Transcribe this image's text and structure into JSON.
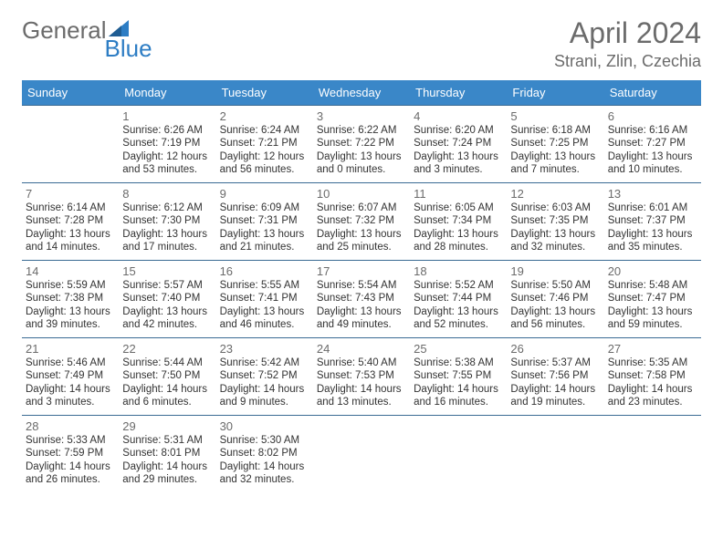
{
  "brand": {
    "part1": "General",
    "part2": "Blue"
  },
  "title": "April 2024",
  "location": "Strani, Zlin, Czechia",
  "colors": {
    "header_bg": "#3a87c8",
    "header_fg": "#ffffff",
    "row_border": "#3a6b94",
    "text_gray": "#6b6b6b",
    "text_body": "#333333",
    "brand_blue": "#2d7dc4",
    "page_bg": "#ffffff"
  },
  "weekdays": [
    "Sunday",
    "Monday",
    "Tuesday",
    "Wednesday",
    "Thursday",
    "Friday",
    "Saturday"
  ],
  "layout": {
    "first_weekday_index": 1,
    "days_in_month": 30,
    "rows": 5,
    "cols": 7
  },
  "days": {
    "1": {
      "sunrise": "6:26 AM",
      "sunset": "7:19 PM",
      "daylight": "12 hours and 53 minutes."
    },
    "2": {
      "sunrise": "6:24 AM",
      "sunset": "7:21 PM",
      "daylight": "12 hours and 56 minutes."
    },
    "3": {
      "sunrise": "6:22 AM",
      "sunset": "7:22 PM",
      "daylight": "13 hours and 0 minutes."
    },
    "4": {
      "sunrise": "6:20 AM",
      "sunset": "7:24 PM",
      "daylight": "13 hours and 3 minutes."
    },
    "5": {
      "sunrise": "6:18 AM",
      "sunset": "7:25 PM",
      "daylight": "13 hours and 7 minutes."
    },
    "6": {
      "sunrise": "6:16 AM",
      "sunset": "7:27 PM",
      "daylight": "13 hours and 10 minutes."
    },
    "7": {
      "sunrise": "6:14 AM",
      "sunset": "7:28 PM",
      "daylight": "13 hours and 14 minutes."
    },
    "8": {
      "sunrise": "6:12 AM",
      "sunset": "7:30 PM",
      "daylight": "13 hours and 17 minutes."
    },
    "9": {
      "sunrise": "6:09 AM",
      "sunset": "7:31 PM",
      "daylight": "13 hours and 21 minutes."
    },
    "10": {
      "sunrise": "6:07 AM",
      "sunset": "7:32 PM",
      "daylight": "13 hours and 25 minutes."
    },
    "11": {
      "sunrise": "6:05 AM",
      "sunset": "7:34 PM",
      "daylight": "13 hours and 28 minutes."
    },
    "12": {
      "sunrise": "6:03 AM",
      "sunset": "7:35 PM",
      "daylight": "13 hours and 32 minutes."
    },
    "13": {
      "sunrise": "6:01 AM",
      "sunset": "7:37 PM",
      "daylight": "13 hours and 35 minutes."
    },
    "14": {
      "sunrise": "5:59 AM",
      "sunset": "7:38 PM",
      "daylight": "13 hours and 39 minutes."
    },
    "15": {
      "sunrise": "5:57 AM",
      "sunset": "7:40 PM",
      "daylight": "13 hours and 42 minutes."
    },
    "16": {
      "sunrise": "5:55 AM",
      "sunset": "7:41 PM",
      "daylight": "13 hours and 46 minutes."
    },
    "17": {
      "sunrise": "5:54 AM",
      "sunset": "7:43 PM",
      "daylight": "13 hours and 49 minutes."
    },
    "18": {
      "sunrise": "5:52 AM",
      "sunset": "7:44 PM",
      "daylight": "13 hours and 52 minutes."
    },
    "19": {
      "sunrise": "5:50 AM",
      "sunset": "7:46 PM",
      "daylight": "13 hours and 56 minutes."
    },
    "20": {
      "sunrise": "5:48 AM",
      "sunset": "7:47 PM",
      "daylight": "13 hours and 59 minutes."
    },
    "21": {
      "sunrise": "5:46 AM",
      "sunset": "7:49 PM",
      "daylight": "14 hours and 3 minutes."
    },
    "22": {
      "sunrise": "5:44 AM",
      "sunset": "7:50 PM",
      "daylight": "14 hours and 6 minutes."
    },
    "23": {
      "sunrise": "5:42 AM",
      "sunset": "7:52 PM",
      "daylight": "14 hours and 9 minutes."
    },
    "24": {
      "sunrise": "5:40 AM",
      "sunset": "7:53 PM",
      "daylight": "14 hours and 13 minutes."
    },
    "25": {
      "sunrise": "5:38 AM",
      "sunset": "7:55 PM",
      "daylight": "14 hours and 16 minutes."
    },
    "26": {
      "sunrise": "5:37 AM",
      "sunset": "7:56 PM",
      "daylight": "14 hours and 19 minutes."
    },
    "27": {
      "sunrise": "5:35 AM",
      "sunset": "7:58 PM",
      "daylight": "14 hours and 23 minutes."
    },
    "28": {
      "sunrise": "5:33 AM",
      "sunset": "7:59 PM",
      "daylight": "14 hours and 26 minutes."
    },
    "29": {
      "sunrise": "5:31 AM",
      "sunset": "8:01 PM",
      "daylight": "14 hours and 29 minutes."
    },
    "30": {
      "sunrise": "5:30 AM",
      "sunset": "8:02 PM",
      "daylight": "14 hours and 32 minutes."
    }
  },
  "labels": {
    "sunrise_prefix": "Sunrise: ",
    "sunset_prefix": "Sunset: ",
    "daylight_prefix": "Daylight: "
  }
}
